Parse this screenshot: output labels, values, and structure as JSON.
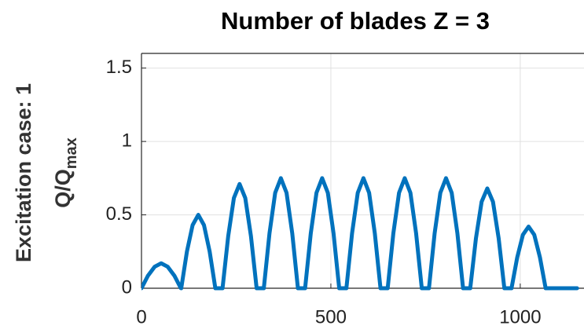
{
  "chart_data": {
    "type": "line",
    "title": "Number of blades Z = 3",
    "row_label": "Excitation case: 1",
    "ylabel_main": "Q/Q",
    "ylabel_sub": "max",
    "x": [
      0,
      17,
      35,
      52,
      69,
      87,
      104,
      105,
      120,
      135,
      150,
      165,
      180,
      195,
      214,
      229,
      244,
      259,
      274,
      289,
      304,
      323,
      338,
      353,
      368,
      383,
      398,
      413,
      432,
      447,
      462,
      477,
      492,
      507,
      522,
      541,
      556,
      571,
      586,
      601,
      616,
      631,
      650,
      665,
      680,
      695,
      710,
      725,
      740,
      759,
      774,
      789,
      804,
      819,
      834,
      849,
      868,
      883,
      898,
      913,
      928,
      943,
      958,
      977,
      992,
      1007,
      1022,
      1037,
      1052,
      1067,
      1150
    ],
    "series": [
      {
        "color": "#0072BD",
        "values": [
          0,
          0.085,
          0.147,
          0.17,
          0.147,
          0.085,
          0,
          0,
          0.25,
          0.43,
          0.5,
          0.43,
          0.25,
          0,
          0,
          0.355,
          0.615,
          0.71,
          0.615,
          0.355,
          0,
          0,
          0.375,
          0.65,
          0.75,
          0.65,
          0.375,
          0,
          0,
          0.375,
          0.65,
          0.75,
          0.65,
          0.375,
          0,
          0,
          0.375,
          0.65,
          0.75,
          0.65,
          0.375,
          0,
          0,
          0.375,
          0.65,
          0.75,
          0.65,
          0.375,
          0,
          0,
          0.375,
          0.65,
          0.75,
          0.65,
          0.375,
          0,
          0,
          0.34,
          0.589,
          0.68,
          0.589,
          0.34,
          0,
          0,
          0.21,
          0.364,
          0.42,
          0.364,
          0.21,
          0,
          0
        ]
      }
    ],
    "xlim": [
      0,
      1160
    ],
    "ylim": [
      0,
      1.6
    ],
    "xticks": [
      0,
      500,
      1000
    ],
    "yticks": [
      0,
      0.5,
      1,
      1.5
    ],
    "grid": true
  }
}
